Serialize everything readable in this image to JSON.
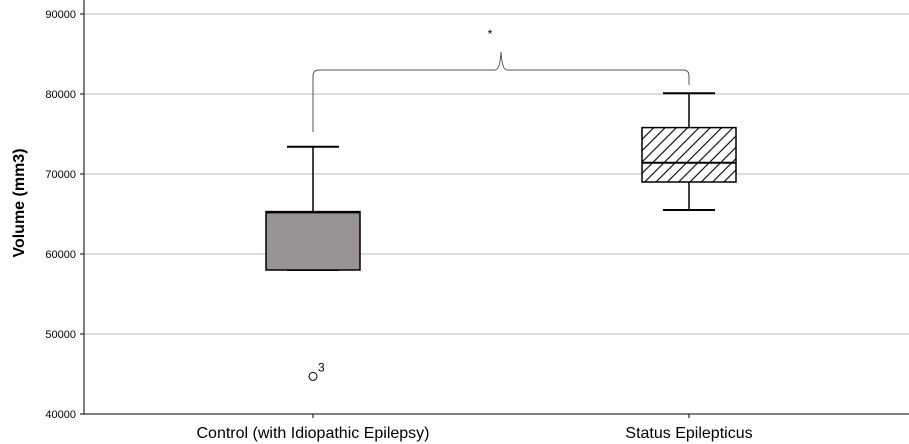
{
  "chart_data": {
    "type": "box",
    "title": "",
    "xlabel": "",
    "ylabel": "Volume (mm3)",
    "ylim": [
      40000,
      92000
    ],
    "yticks": [
      40000,
      50000,
      60000,
      70000,
      80000,
      90000
    ],
    "ytick_labels": [
      "40000",
      "50000",
      "60000",
      "70000",
      "80000",
      "90000"
    ],
    "grid": true,
    "categories": [
      "Control (with Idiopathic Epilepsy)",
      "Status Epilepticus"
    ],
    "boxes": [
      {
        "category": "Control (with Idiopathic Epilepsy)",
        "whisker_low": 58000,
        "q1": 58000,
        "median": 65200,
        "q3": 65300,
        "whisker_high": 73400,
        "fill": "#999493",
        "pattern": "solid",
        "outliers": [
          {
            "value": 44700,
            "label": "3"
          }
        ]
      },
      {
        "category": "Status Epilepticus",
        "whisker_low": 65500,
        "q1": 69000,
        "median": 71400,
        "q3": 75800,
        "whisker_high": 80100,
        "fill": "#ffffff",
        "pattern": "diagonal-hatch",
        "outliers": []
      }
    ],
    "significance": {
      "label": "*",
      "between": [
        0,
        1
      ],
      "level": 83000
    }
  }
}
